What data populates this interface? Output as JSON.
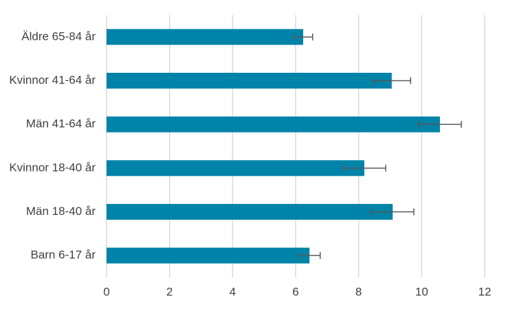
{
  "chart_data": {
    "type": "bar",
    "orientation": "horizontal",
    "categories": [
      "Äldre 65-84 år",
      "Kvinnor 41-64 år",
      "Män 41-64 år",
      "Kvinnor 18-40 år",
      "Män 18-40 år",
      "Barn 6-17 år"
    ],
    "values": [
      6.24,
      9.05,
      10.58,
      8.18,
      9.08,
      6.44
    ],
    "errors": [
      0.3,
      0.6,
      0.68,
      0.68,
      0.67,
      0.34
    ],
    "color": "#0083a9",
    "error_color": "#595959",
    "xlim": [
      0,
      12
    ],
    "xticks": [
      0,
      2,
      4,
      6,
      8,
      10,
      12
    ],
    "grid": true
  }
}
